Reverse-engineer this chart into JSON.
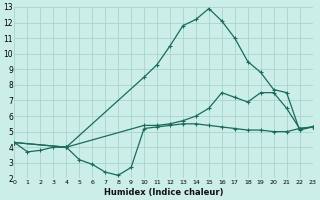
{
  "xlabel": "Humidex (Indice chaleur)",
  "bg_color": "#cceee8",
  "grid_color": "#aad4cc",
  "line_color": "#1a6b5a",
  "xlim": [
    0,
    23
  ],
  "ylim": [
    2,
    13
  ],
  "xticks": [
    0,
    1,
    2,
    3,
    4,
    5,
    6,
    7,
    8,
    9,
    10,
    11,
    12,
    13,
    14,
    15,
    16,
    17,
    18,
    19,
    20,
    21,
    22,
    23
  ],
  "yticks": [
    2,
    3,
    4,
    5,
    6,
    7,
    8,
    9,
    10,
    11,
    12,
    13
  ],
  "s1_x": [
    0,
    1,
    2,
    3,
    4,
    5,
    6,
    7,
    8,
    9,
    10,
    11,
    12,
    13,
    14,
    15,
    16,
    17,
    18,
    19,
    20,
    21,
    22,
    23
  ],
  "s1_y": [
    4.3,
    3.7,
    3.8,
    4.0,
    4.0,
    3.2,
    2.9,
    2.4,
    2.2,
    2.7,
    5.2,
    5.3,
    5.4,
    5.5,
    5.5,
    5.4,
    5.3,
    5.2,
    5.1,
    5.1,
    5.0,
    5.0,
    5.2,
    5.3
  ],
  "s2_x": [
    0,
    4,
    10,
    11,
    12,
    13,
    14,
    15,
    16,
    17,
    18,
    19,
    20,
    21,
    22,
    23
  ],
  "s2_y": [
    4.3,
    4.0,
    5.4,
    5.4,
    5.5,
    5.7,
    6.0,
    6.5,
    7.5,
    7.2,
    6.9,
    7.5,
    7.5,
    6.5,
    5.2,
    5.3
  ],
  "s3_x": [
    0,
    4,
    10,
    11,
    12,
    13,
    14,
    15,
    16,
    17,
    18,
    19,
    20,
    21,
    22,
    23
  ],
  "s3_y": [
    4.3,
    4.0,
    8.5,
    9.3,
    10.5,
    11.8,
    12.2,
    12.9,
    12.1,
    11.0,
    9.5,
    8.8,
    7.7,
    7.5,
    5.1,
    5.3
  ]
}
